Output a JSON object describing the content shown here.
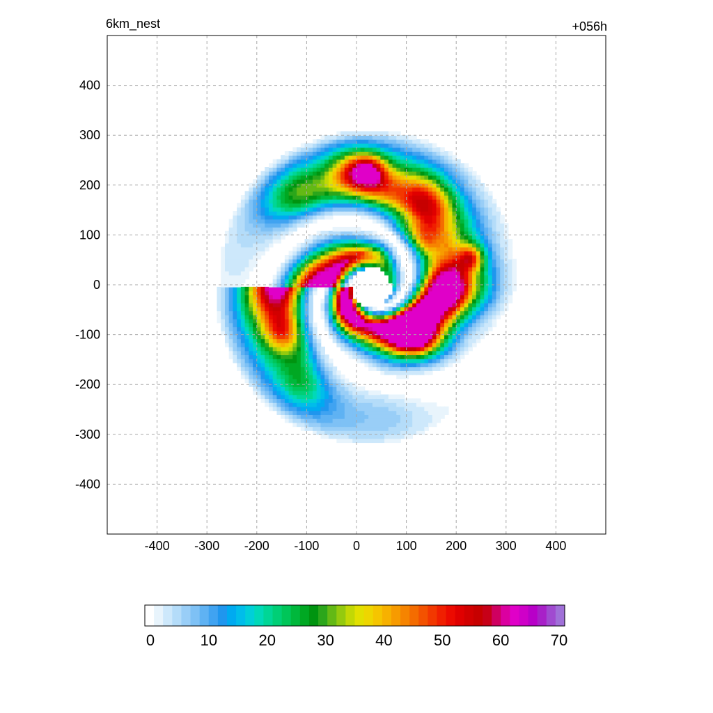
{
  "chart_data": {
    "type": "heatmap",
    "title_left": "6km_nest",
    "title_right": "+056h",
    "xlabel": "",
    "ylabel": "",
    "xlim": [
      -500,
      500
    ],
    "ylim": [
      -500,
      500
    ],
    "x_ticks": [
      -400,
      -300,
      -200,
      -100,
      0,
      100,
      200,
      300,
      400
    ],
    "y_ticks": [
      400,
      300,
      200,
      100,
      0,
      -100,
      -200,
      -300,
      -400
    ],
    "grid": true,
    "grid_style": "dashed",
    "field_description": "spiral-banded cyclone reflectivity-like field centered near (30, 0) with a clear eye and rainbands",
    "colorbar": {
      "orientation": "horizontal",
      "min": 0,
      "max": 70,
      "tick_values": [
        0,
        10,
        20,
        30,
        40,
        50,
        60,
        70
      ],
      "tick_labels": [
        "0",
        "10",
        "20",
        "30",
        "40",
        "50",
        "60",
        "70"
      ],
      "colors": [
        "#ffffff",
        "#e8f4fc",
        "#cde8fb",
        "#b4dcf9",
        "#99cef7",
        "#7ec1f5",
        "#5fb2f3",
        "#40a3f1",
        "#1f96ee",
        "#00aaf0",
        "#00bdea",
        "#00cfd8",
        "#00d9b8",
        "#00d696",
        "#00cf76",
        "#00c659",
        "#00b83c",
        "#00a823",
        "#009410",
        "#2ba61b",
        "#63b915",
        "#94ca0e",
        "#c2d805",
        "#e2e000",
        "#eed600",
        "#f5c500",
        "#f7b100",
        "#f79b00",
        "#f68400",
        "#f46c00",
        "#f35200",
        "#f23800",
        "#f01f00",
        "#ec0a00",
        "#e00000",
        "#d20000",
        "#c70000",
        "#c70018",
        "#cf0060",
        "#db00a0",
        "#e000c8",
        "#cf00c8",
        "#b800c8",
        "#a820c8",
        "#a04ad0",
        "#a070d8"
      ]
    }
  }
}
